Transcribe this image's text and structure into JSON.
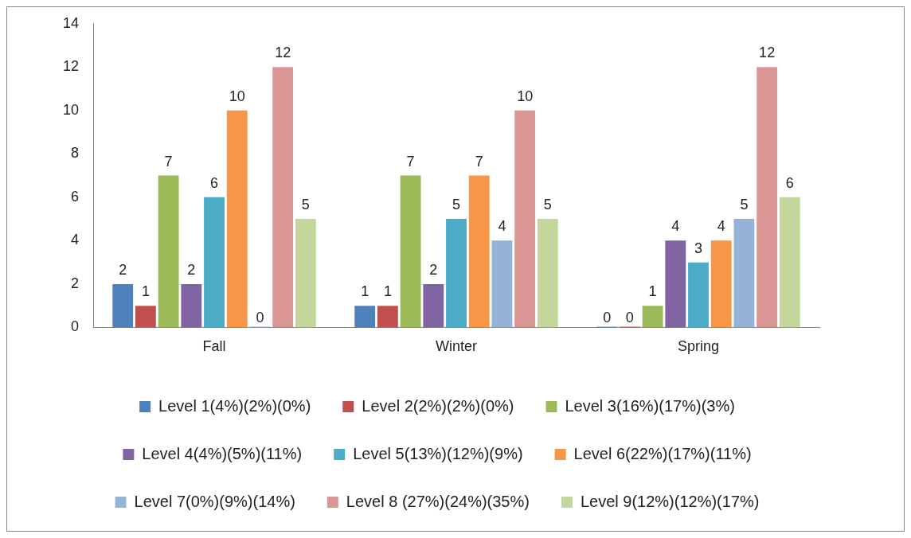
{
  "chart_data": {
    "type": "bar",
    "categories": [
      "Fall",
      "Winter",
      "Spring"
    ],
    "series": [
      {
        "name": "Level 1(4%)(2%)(0%)",
        "color": "#4f81bd",
        "values": [
          2,
          1,
          0
        ]
      },
      {
        "name": "Level 2(2%)(2%)(0%)",
        "color": "#c0504d",
        "values": [
          1,
          1,
          0
        ]
      },
      {
        "name": "Level 3(16%)(17%)(3%)",
        "color": "#9bbb59",
        "values": [
          7,
          7,
          1
        ]
      },
      {
        "name": "Level 4(4%)(5%)(11%)",
        "color": "#8064a2",
        "values": [
          2,
          2,
          4
        ]
      },
      {
        "name": "Level 5(13%)(12%)(9%)",
        "color": "#4bacc6",
        "values": [
          6,
          5,
          3
        ]
      },
      {
        "name": "Level 6(22%)(17%)(11%)",
        "color": "#f79646",
        "values": [
          10,
          7,
          4
        ]
      },
      {
        "name": "Level 7(0%)(9%)(14%)",
        "color": "#95b3d7",
        "values": [
          0,
          4,
          5
        ]
      },
      {
        "name": "Level 8 (27%)(24%)(35%)",
        "color": "#d99694",
        "values": [
          12,
          10,
          12
        ]
      },
      {
        "name": "Level 9(12%)(12%)(17%)",
        "color": "#c3d69b",
        "values": [
          5,
          5,
          6
        ]
      }
    ],
    "ylim": [
      0,
      14
    ],
    "yticks": [
      0,
      2,
      4,
      6,
      8,
      10,
      12,
      14
    ],
    "grid": false,
    "legend": "bottom",
    "data_labels": true
  }
}
